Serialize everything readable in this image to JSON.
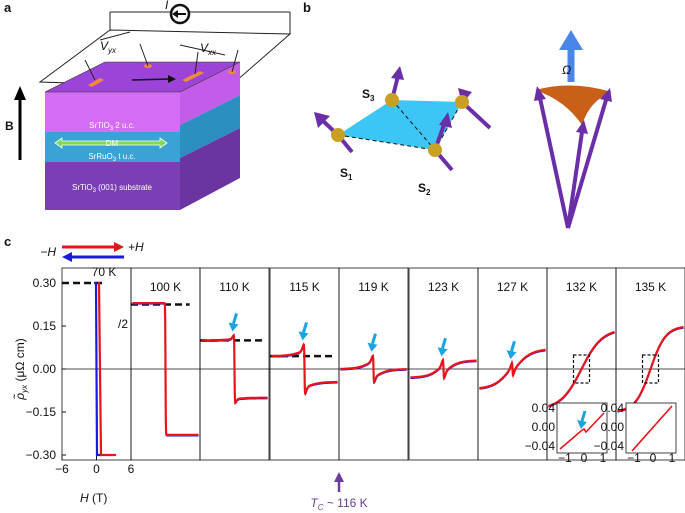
{
  "panel_labels": [
    "a",
    "b",
    "c"
  ],
  "panel_a": {
    "current": "I",
    "v_yx": [
      "V",
      "yx"
    ],
    "v_xx": [
      "V",
      "xx"
    ],
    "field": "B",
    "layers": [
      [
        "SrTiO",
        "3",
        " 2 u.c."
      ],
      [
        "DM"
      ],
      [
        "SrRuO",
        "3",
        " t u.c."
      ],
      [
        "SrTiO",
        "3",
        " (001) substrate"
      ]
    ]
  },
  "panel_b": {
    "spins": [
      [
        "S",
        "1"
      ],
      [
        "S",
        "2"
      ],
      [
        "S",
        "3"
      ]
    ],
    "solid_angle": "Ω"
  },
  "panel_c": {
    "legend": [
      "−H",
      "+H"
    ],
    "temperatures": [
      "70 K",
      "100 K",
      "110 K",
      "115 K",
      "119 K",
      "123 K",
      "127 K",
      "132 K",
      "135 K"
    ],
    "halving": "/2",
    "yticks": [
      "0.30",
      "0.15",
      "0.00",
      "−0.15",
      "−0.30"
    ],
    "ylabel": [
      "ρ̃",
      "yx",
      " (μΩ cm)"
    ],
    "xticks": [
      "−6",
      "0",
      "6"
    ],
    "xlabel": [
      "H",
      " (T)"
    ],
    "tc": [
      "T",
      "C",
      " ~ 116 K"
    ],
    "inset_yticks": [
      "0.04",
      "0.00",
      "−0.04"
    ],
    "inset_xticks": [
      "−1",
      "0",
      "1"
    ]
  }
}
